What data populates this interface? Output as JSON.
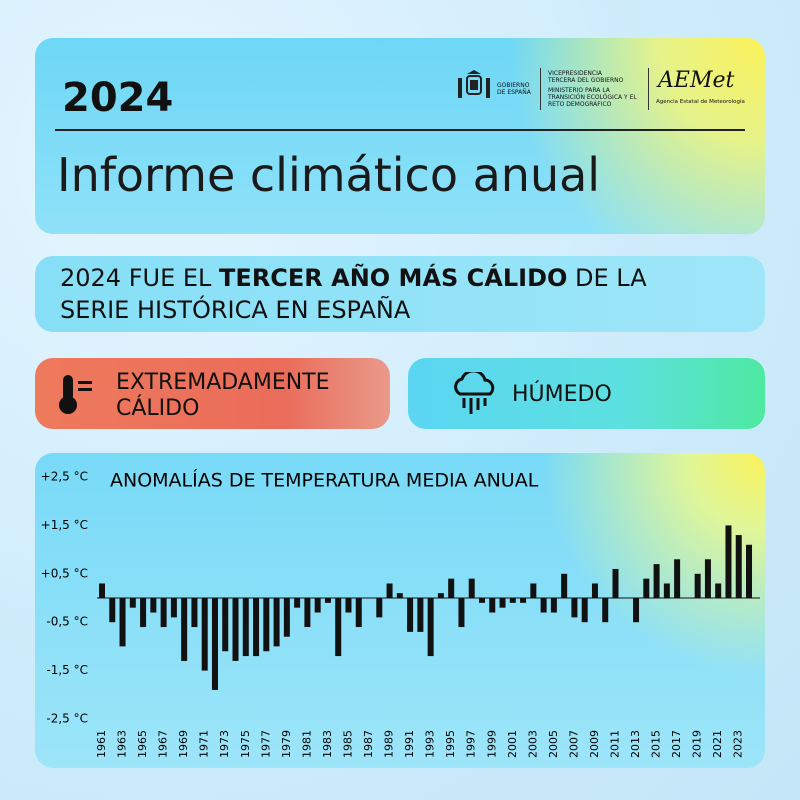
{
  "header": {
    "year": "2024",
    "government": "GOBIERNO DE ESPAÑA",
    "vicepresidency": "VICEPRESIDENCIA TERCERA DEL GOBIERNO",
    "ministry": "MINISTERIO PARA LA TRANSICIÓN ECOLÓGICA Y EL RETO DEMOGRÁFICO",
    "agency_logo": "AEMet",
    "agency_name": "Agencia Estatal de Meteorología",
    "title": "Informe climático anual"
  },
  "headline": {
    "before": "2024 FUE EL",
    "highlight": "TERCER AÑO MÁS CÁLIDO",
    "after": "DE LA SERIE HISTÓRICA EN ESPAÑA"
  },
  "badges": {
    "temperature": "EXTREMADAMENTE CÁLIDO",
    "precipitation": "HÚMEDO"
  },
  "chart_data": {
    "type": "bar",
    "title": "ANOMALÍAS DE TEMPERATURA MEDIA ANUAL",
    "categories": [
      "1961",
      null,
      "1963",
      null,
      "1965",
      null,
      "1967",
      null,
      "1969",
      null,
      "1971",
      null,
      "1973",
      null,
      "1975",
      null,
      "1977",
      null,
      "1979",
      null,
      "1981",
      null,
      "1983",
      null,
      "1985",
      null,
      "1987",
      null,
      "1989",
      null,
      "1991",
      null,
      "1993",
      null,
      "1995",
      null,
      "1997",
      null,
      "1999",
      null,
      "2001",
      null,
      "2003",
      null,
      "2005",
      null,
      "2007",
      null,
      "2009",
      null,
      "2011",
      null,
      "2013",
      null,
      "2015",
      null,
      "2017",
      null,
      "2019",
      null,
      "2021",
      null,
      "2023",
      null
    ],
    "values": [
      0.3,
      -0.5,
      -1.0,
      -0.2,
      -0.6,
      -0.3,
      -0.6,
      -0.4,
      -1.3,
      -0.6,
      -1.5,
      -1.9,
      -1.1,
      -1.3,
      -1.2,
      -1.2,
      -1.1,
      -1.0,
      -0.8,
      -0.2,
      -0.6,
      -0.3,
      -0.1,
      -1.2,
      -0.3,
      -0.6,
      0,
      -0.4,
      0.3,
      0.1,
      -0.7,
      -0.7,
      -1.2,
      0.1,
      0.4,
      -0.6,
      0.4,
      -0.1,
      -0.3,
      -0.2,
      -0.1,
      -0.1,
      0.3,
      -0.3,
      -0.3,
      0.5,
      -0.4,
      -0.5,
      0.3,
      -0.5,
      0.6,
      0,
      -0.5,
      0.4,
      0.7,
      0.3,
      0.8,
      0,
      0.5,
      0.8,
      0.3,
      1.5,
      1.3,
      1.1
    ],
    "color": "#111111",
    "ylim": [
      -2.5,
      2.5
    ],
    "yticks": [
      {
        "value": 2.5,
        "label": "+2,5 °C"
      },
      {
        "value": 1.5,
        "label": "+1,5 °C"
      },
      {
        "value": 0.5,
        "label": "+0,5 °C"
      },
      {
        "value": -0.5,
        "label": "-0,5 °C"
      },
      {
        "value": -1.5,
        "label": "-1,5 °C"
      },
      {
        "value": -2.5,
        "label": "-2,5 °C"
      }
    ],
    "grid": false
  }
}
